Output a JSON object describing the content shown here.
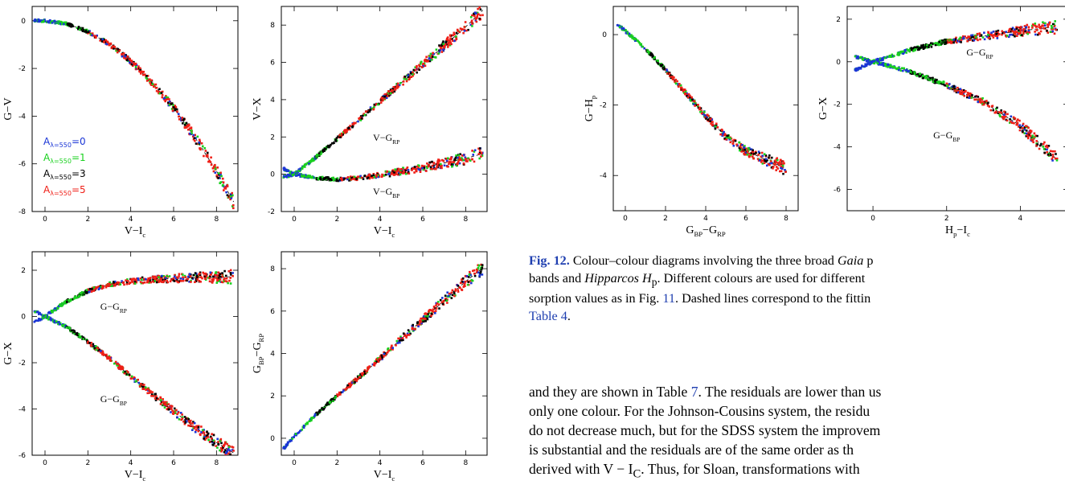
{
  "colors": {
    "A0": "#1a35d6",
    "A1": "#19d11e",
    "A3": "#000000",
    "A5": "#ef1e16"
  },
  "legend": [
    {
      "pre": "A",
      "sub": "λ=550",
      "val": "=0",
      "key": "A0"
    },
    {
      "pre": "A",
      "sub": "λ=550",
      "val": "=1",
      "key": "A1"
    },
    {
      "pre": "A",
      "sub": "λ=550",
      "val": "=3",
      "key": "A3"
    },
    {
      "pre": "A",
      "sub": "λ=550",
      "val": "=5",
      "key": "A5"
    }
  ],
  "caption": {
    "fig_label": "Fig. 12.",
    "line1": "Colour–colour diagrams involving the three broad",
    "gaia": "Gaia",
    "line1_end": "p",
    "line2a": "bands and",
    "hipparcos": "Hipparcos",
    "hp": "H",
    "hp_sub": "p",
    "line2b": ". Different colours are used for different",
    "line3a": "sorption values as in Fig.",
    "fig_ref": "11",
    "line3b": ". Dashed lines correspond to the fittin",
    "table_ref": "Table 4",
    "line4_end": "."
  },
  "body_text": {
    "line1a": "and they are shown in Table",
    "table7": "7",
    "line1b": ". The residuals are lower than us",
    "line2": "only one colour. For the Johnson-Cousins system, the residu",
    "line3": "do not decrease much, but for the SDSS system the improvem",
    "line4": "is substantial and the residuals are of the same order as th",
    "line5": "derived with V − I",
    "line5_sub": "C",
    "line5b": ". Thus, for Sloan, transformations with"
  },
  "chart_data": [
    {
      "type": "scatter",
      "id": "p1",
      "xlabel": "V−I",
      "xlabel_sub": "c",
      "ylabel": "G−V",
      "xlim": [
        -0.6,
        9
      ],
      "ylim": [
        -8,
        0.6
      ],
      "xticks": [
        0,
        2,
        4,
        6,
        8
      ],
      "yticks": [
        0,
        -2,
        -4,
        -6,
        -8
      ],
      "series": [
        {
          "label": "",
          "points": [
            [
              -0.5,
              0.0
            ],
            [
              0,
              0
            ],
            [
              1,
              -0.12
            ],
            [
              2,
              -0.45
            ],
            [
              3,
              -0.98
            ],
            [
              4,
              -1.7
            ],
            [
              5,
              -2.6
            ],
            [
              6,
              -3.65
            ],
            [
              7,
              -4.9
            ],
            [
              8,
              -6.3
            ],
            [
              8.8,
              -7.6
            ]
          ]
        }
      ]
    },
    {
      "type": "scatter",
      "id": "p2",
      "xlabel": "V−I",
      "xlabel_sub": "c",
      "ylabel": "V−X",
      "xlim": [
        -0.6,
        9
      ],
      "ylim": [
        -2,
        9
      ],
      "xticks": [
        0,
        2,
        4,
        6,
        8
      ],
      "yticks": [
        -2,
        0,
        2,
        4,
        6,
        8
      ],
      "annotations": [
        {
          "text": "V−G",
          "sub": "RP",
          "x": 4.3,
          "y": 1.8
        },
        {
          "text": "V−G",
          "sub": "BP",
          "x": 4.3,
          "y": -1.1
        }
      ],
      "series": [
        {
          "label": "V−G_RP",
          "points": [
            [
              -0.5,
              -0.15
            ],
            [
              0,
              0
            ],
            [
              1,
              0.9
            ],
            [
              2,
              1.9
            ],
            [
              3,
              2.9
            ],
            [
              4,
              3.9
            ],
            [
              5,
              4.9
            ],
            [
              6,
              5.9
            ],
            [
              7,
              6.9
            ],
            [
              8,
              7.9
            ],
            [
              8.8,
              8.8
            ]
          ]
        },
        {
          "label": "V−G_BP",
          "points": [
            [
              -0.5,
              0.3
            ],
            [
              0,
              0
            ],
            [
              1,
              -0.2
            ],
            [
              2,
              -0.28
            ],
            [
              3,
              -0.2
            ],
            [
              4,
              -0.05
            ],
            [
              5,
              0.15
            ],
            [
              6,
              0.35
            ],
            [
              7,
              0.6
            ],
            [
              8,
              0.85
            ],
            [
              8.8,
              1.1
            ]
          ]
        }
      ]
    },
    {
      "type": "scatter",
      "id": "p3",
      "xlabel": "V−I",
      "xlabel_sub": "c",
      "ylabel": "G−X",
      "xlim": [
        -0.6,
        9
      ],
      "ylim": [
        -6,
        2.8
      ],
      "xticks": [
        0,
        2,
        4,
        6,
        8
      ],
      "yticks": [
        2,
        0,
        -2,
        -4,
        -6
      ],
      "annotations": [
        {
          "text": "G−G",
          "sub": "RP",
          "x": 3.2,
          "y": 0.3
        },
        {
          "text": "G−G",
          "sub": "BP",
          "x": 3.2,
          "y": -3.7
        }
      ],
      "series": [
        {
          "label": "G−G_RP",
          "points": [
            [
              -0.5,
              -0.25
            ],
            [
              0,
              0
            ],
            [
              1,
              0.65
            ],
            [
              2,
              1.1
            ],
            [
              3,
              1.38
            ],
            [
              4,
              1.52
            ],
            [
              5,
              1.6
            ],
            [
              6,
              1.65
            ],
            [
              7,
              1.68
            ],
            [
              8,
              1.7
            ],
            [
              8.8,
              1.72
            ]
          ]
        },
        {
          "label": "G−G_BP",
          "points": [
            [
              -0.5,
              0.25
            ],
            [
              0,
              0
            ],
            [
              1,
              -0.45
            ],
            [
              2,
              -1.1
            ],
            [
              3,
              -1.8
            ],
            [
              4,
              -2.6
            ],
            [
              5,
              -3.35
            ],
            [
              6,
              -4.1
            ],
            [
              7,
              -4.8
            ],
            [
              8,
              -5.45
            ],
            [
              8.8,
              -5.9
            ]
          ]
        }
      ]
    },
    {
      "type": "scatter",
      "id": "p4",
      "xlabel": "V−I",
      "xlabel_sub": "c",
      "ylabel": "G",
      "ylabel_sub": "BP",
      "ylabel_mid": "−G",
      "ylabel_sub2": "RP",
      "xlim": [
        -0.6,
        9
      ],
      "ylim": [
        -0.8,
        8.8
      ],
      "xticks": [
        0,
        2,
        4,
        6,
        8
      ],
      "yticks": [
        0,
        2,
        4,
        6,
        8
      ],
      "series": [
        {
          "label": "",
          "points": [
            [
              -0.5,
              -0.5
            ],
            [
              0,
              0.1
            ],
            [
              1,
              1.1
            ],
            [
              2,
              2.0
            ],
            [
              3,
              2.85
            ],
            [
              4,
              3.75
            ],
            [
              5,
              4.7
            ],
            [
              6,
              5.6
            ],
            [
              7,
              6.5
            ],
            [
              8,
              7.4
            ],
            [
              8.8,
              8.05
            ]
          ]
        }
      ]
    },
    {
      "type": "scatter",
      "id": "p5",
      "xlabel": "G",
      "xlabel_sub": "BP",
      "xlabel_mid": "−G",
      "xlabel_sub2": "RP",
      "ylabel": "G−H",
      "ylabel_sub": "p",
      "xlim": [
        -0.6,
        8.6
      ],
      "ylim": [
        -5,
        0.8
      ],
      "xticks": [
        0,
        2,
        4,
        6,
        8
      ],
      "yticks": [
        0,
        -2,
        -4
      ],
      "series": [
        {
          "label": "",
          "points": [
            [
              -0.4,
              0.3
            ],
            [
              0,
              0.1
            ],
            [
              1,
              -0.4
            ],
            [
              2,
              -1.0
            ],
            [
              3,
              -1.65
            ],
            [
              4,
              -2.3
            ],
            [
              5,
              -2.9
            ],
            [
              6,
              -3.3
            ],
            [
              7,
              -3.55
            ],
            [
              8,
              -3.8
            ]
          ]
        }
      ]
    },
    {
      "type": "scatter",
      "id": "p6",
      "xlabel": "H",
      "xlabel_sub": "p",
      "xlabel_mid": "−I",
      "xlabel_sub2": "c",
      "ylabel": "G−X",
      "xlim": [
        -0.7,
        5.3
      ],
      "ylim": [
        -7,
        2.6
      ],
      "xticks": [
        0,
        2,
        4
      ],
      "yticks": [
        2,
        0,
        -2,
        -4,
        -6
      ],
      "annotations": [
        {
          "text": "G−G",
          "sub": "RP",
          "x": 2.9,
          "y": 0.3
        },
        {
          "text": "G−G",
          "sub": "BP",
          "x": 2.0,
          "y": -3.6
        }
      ],
      "series": [
        {
          "label": "G−G_RP",
          "points": [
            [
              -0.5,
              -0.4
            ],
            [
              0,
              0
            ],
            [
              1,
              0.55
            ],
            [
              2,
              0.95
            ],
            [
              3,
              1.2
            ],
            [
              4,
              1.45
            ],
            [
              5,
              1.65
            ]
          ]
        },
        {
          "label": "G−G_BP",
          "points": [
            [
              -0.5,
              0.25
            ],
            [
              0,
              0
            ],
            [
              1,
              -0.45
            ],
            [
              2,
              -1.1
            ],
            [
              3,
              -1.9
            ],
            [
              4,
              -3.0
            ],
            [
              5,
              -4.6
            ]
          ]
        }
      ]
    }
  ]
}
